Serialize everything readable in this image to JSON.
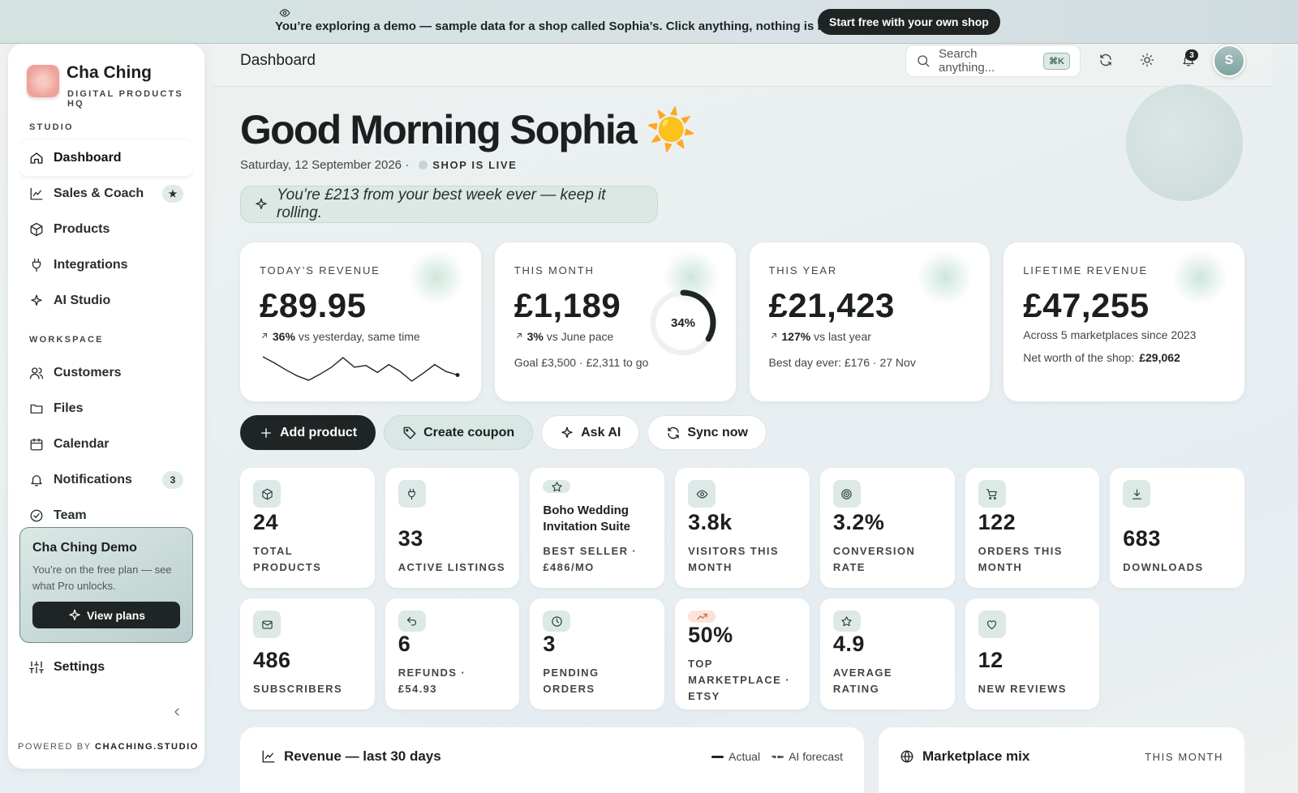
{
  "banner": {
    "text": "You’re exploring a demo — sample data for a shop called Sophia’s. Click anything, nothing is real.",
    "button": "Start free with your own shop"
  },
  "sidebar": {
    "brand": "Cha Ching",
    "tagline": "DIGITAL PRODUCTS HQ",
    "sections": [
      {
        "label": "STUDIO",
        "items": [
          {
            "label": "Dashboard"
          },
          {
            "label": "Sales & Coach",
            "badge": "★"
          },
          {
            "label": "Products"
          },
          {
            "label": "Integrations"
          },
          {
            "label": "AI Studio"
          }
        ]
      },
      {
        "label": "WORKSPACE",
        "items": [
          {
            "label": "Customers"
          },
          {
            "label": "Files"
          },
          {
            "label": "Calendar"
          },
          {
            "label": "Notifications",
            "badge": "3"
          },
          {
            "label": "Team"
          }
        ]
      }
    ],
    "promo": {
      "title": "Cha Ching Demo",
      "text": "You’re on the free plan — see what Pro unlocks.",
      "button": "View plans"
    },
    "settings": "Settings",
    "footer": {
      "prefix": "POWERED BY",
      "brand": "CHACHING.STUDIO"
    }
  },
  "header": {
    "title": "Dashboard",
    "search": "Search anything...",
    "shortcut": "⌘K",
    "notifications": "3",
    "avatar": "S"
  },
  "greeting": {
    "title": "Good Morning Sophia",
    "emoji": "☀️",
    "date": "Saturday, 12 September 2026 ·",
    "status": "SHOP IS LIVE",
    "nudge": "You’re £213 from your best week ever — keep it rolling."
  },
  "kpis": [
    {
      "label": "TODAY’S REVENUE",
      "value": "£89.95",
      "change": "36%",
      "change_text": "vs yesterday, same time",
      "sparkline": [
        30,
        23,
        15,
        8,
        3,
        10,
        18,
        29,
        18,
        20,
        12,
        21,
        13,
        2,
        11,
        21,
        13,
        9
      ]
    },
    {
      "label": "THIS MONTH",
      "value": "£1,189",
      "change": "3%",
      "change_text": "vs June pace",
      "note": "Goal £3,500 · £2,311 to go",
      "progress": {
        "value": 34,
        "label": "34%"
      }
    },
    {
      "label": "THIS YEAR",
      "value": "£21,423",
      "change": "127%",
      "change_text": "vs last year",
      "note": "Best day ever: £176 · 27 Nov"
    },
    {
      "label": "LIFETIME REVENUE",
      "value": "£47,255",
      "note": "Across 5 marketplaces since 2023",
      "extra": "Net worth of the shop:",
      "extra_value": "£29,062"
    }
  ],
  "actions": [
    "Add product",
    "Create coupon",
    "Ask AI",
    "Sync now"
  ],
  "stats": [
    {
      "value": "24",
      "label": "TOTAL PRODUCTS"
    },
    {
      "value": "33",
      "label": "ACTIVE LISTINGS"
    },
    {
      "value": "Boho Wedding Invitation Suite",
      "label": "BEST SELLER · £486/MO"
    },
    {
      "value": "3.8k",
      "label": "VISITORS THIS MONTH"
    },
    {
      "value": "3.2%",
      "label": "CONVERSION RATE"
    },
    {
      "value": "122",
      "label": "ORDERS THIS MONTH"
    },
    {
      "value": "683",
      "label": "DOWNLOADS"
    },
    {
      "value": "486",
      "label": "SUBSCRIBERS"
    },
    {
      "value": "6",
      "label": "REFUNDS · £54.93"
    },
    {
      "value": "3",
      "label": "PENDING ORDERS"
    },
    {
      "value": "50%",
      "label": "TOP MARKETPLACE · ETSY"
    },
    {
      "value": "4.9",
      "label": "AVERAGE RATING"
    },
    {
      "value": "12",
      "label": "NEW REVIEWS"
    }
  ],
  "panels": {
    "revenue": {
      "title": "Revenue — last 30 days",
      "legend": [
        "Actual",
        "AI forecast"
      ]
    },
    "marketplace": {
      "title": "Marketplace mix",
      "period": "THIS MONTH"
    }
  }
}
